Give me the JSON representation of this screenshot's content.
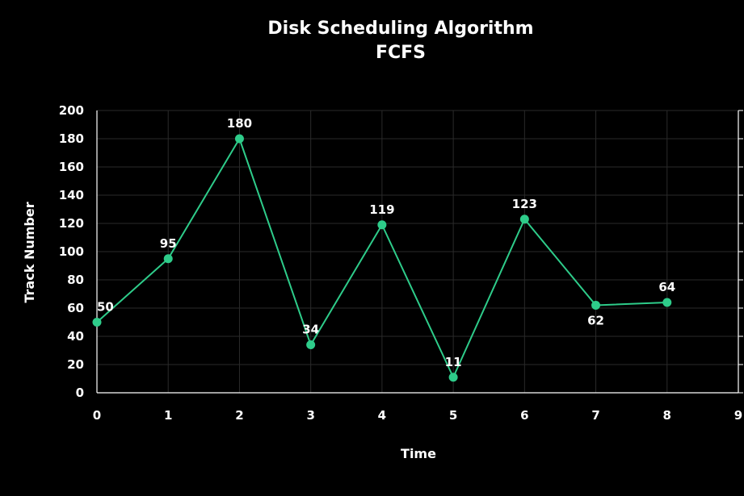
{
  "chart_data": {
    "type": "line",
    "title": "Disk Scheduling Algorithm",
    "subtitle": "FCFS",
    "xlabel": "Time",
    "ylabel": "Track Number",
    "x": [
      0,
      1,
      2,
      3,
      4,
      5,
      6,
      7,
      8
    ],
    "x_ticks": [
      "0",
      "1",
      "2",
      "3",
      "4",
      "5",
      "6",
      "7",
      "8",
      "9"
    ],
    "y_ticks": [
      "0",
      "20",
      "40",
      "60",
      "80",
      "100",
      "120",
      "140",
      "160",
      "180",
      "200"
    ],
    "xlim": [
      0,
      9
    ],
    "ylim": [
      0,
      200
    ],
    "grid": true,
    "series": [
      {
        "values": [
          50,
          95,
          180,
          34,
          119,
          11,
          123,
          62,
          64
        ],
        "labels": [
          "50",
          "95",
          "180",
          "34",
          "119",
          "11",
          "123",
          "62",
          "64"
        ],
        "color": "#2ecc8a"
      }
    ]
  }
}
